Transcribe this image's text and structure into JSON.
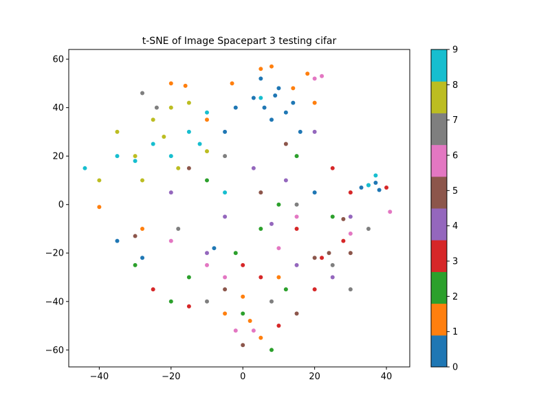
{
  "chart_data": {
    "type": "scatter",
    "title": "t-SNE of Image Spacepart 3 testing cifar",
    "xlabel": "",
    "ylabel": "",
    "xlim": [
      -48.5,
      46.5
    ],
    "ylim": [
      -67,
      64
    ],
    "x_ticks": [
      -40,
      -20,
      0,
      20,
      40
    ],
    "y_ticks": [
      -60,
      -40,
      -20,
      0,
      20,
      40,
      60
    ],
    "x_tick_labels": [
      "−40",
      "−20",
      "0",
      "20",
      "40"
    ],
    "y_tick_labels": [
      "−60",
      "−40",
      "−20",
      "0",
      "20",
      "40",
      "60"
    ],
    "grid": false,
    "colorbar": {
      "range": [
        0,
        9
      ],
      "ticks": [
        0,
        1,
        2,
        3,
        4,
        5,
        6,
        7,
        8,
        9
      ],
      "tick_labels": [
        "0",
        "1",
        "2",
        "3",
        "4",
        "5",
        "6",
        "7",
        "8",
        "9"
      ],
      "colors": [
        "#1f77b4",
        "#ff7f0e",
        "#2ca02c",
        "#d62728",
        "#9467bd",
        "#8c564b",
        "#e377c2",
        "#7f7f7f",
        "#bcbd22",
        "#17becf"
      ]
    },
    "series": [
      {
        "values": [
          [
            5,
            52
          ],
          [
            9,
            45
          ],
          [
            12,
            38
          ],
          [
            6,
            40
          ],
          [
            10,
            48
          ],
          [
            14,
            42
          ],
          [
            8,
            35
          ],
          [
            3,
            44
          ],
          [
            -2,
            40
          ],
          [
            16,
            30
          ],
          [
            35,
            8
          ],
          [
            37,
            9
          ],
          [
            33,
            7
          ],
          [
            38,
            6
          ],
          [
            -8,
            -18
          ],
          [
            -28,
            -22
          ],
          [
            -35,
            -15
          ],
          [
            20,
            5
          ],
          [
            -5,
            30
          ]
        ]
      },
      {
        "values": [
          [
            5,
            56
          ],
          [
            8,
            57
          ],
          [
            -3,
            50
          ],
          [
            -20,
            50
          ],
          [
            -16,
            49
          ],
          [
            2,
            -48
          ],
          [
            5,
            -55
          ],
          [
            -5,
            -45
          ],
          [
            0,
            -38
          ],
          [
            18,
            54
          ],
          [
            -28,
            -10
          ],
          [
            -40,
            -1
          ],
          [
            10,
            -30
          ],
          [
            -10,
            35
          ],
          [
            14,
            48
          ],
          [
            20,
            42
          ]
        ]
      },
      {
        "values": [
          [
            -2,
            -20
          ],
          [
            5,
            -10
          ],
          [
            10,
            0
          ],
          [
            -15,
            -30
          ],
          [
            15,
            20
          ],
          [
            -10,
            10
          ],
          [
            0,
            -45
          ],
          [
            25,
            -5
          ],
          [
            -20,
            -40
          ],
          [
            8,
            -60
          ],
          [
            -30,
            -25
          ],
          [
            12,
            -35
          ]
        ]
      },
      {
        "values": [
          [
            22,
            -22
          ],
          [
            28,
            -15
          ],
          [
            20,
            -35
          ],
          [
            10,
            -50
          ],
          [
            30,
            5
          ],
          [
            15,
            -10
          ],
          [
            -15,
            -42
          ],
          [
            -25,
            -35
          ],
          [
            5,
            -30
          ],
          [
            25,
            15
          ],
          [
            40,
            7
          ],
          [
            0,
            -25
          ]
        ]
      },
      {
        "values": [
          [
            8,
            -8
          ],
          [
            -5,
            -5
          ],
          [
            15,
            -25
          ],
          [
            25,
            -30
          ],
          [
            20,
            30
          ],
          [
            -10,
            -20
          ],
          [
            3,
            15
          ],
          [
            30,
            -5
          ],
          [
            -20,
            5
          ],
          [
            12,
            10
          ]
        ]
      },
      {
        "values": [
          [
            20,
            -22
          ],
          [
            24,
            -20
          ],
          [
            5,
            5
          ],
          [
            -30,
            -13
          ],
          [
            12,
            25
          ],
          [
            -5,
            -35
          ],
          [
            15,
            -45
          ],
          [
            30,
            -20
          ],
          [
            -15,
            15
          ],
          [
            0,
            -58
          ],
          [
            28,
            -6
          ]
        ]
      },
      {
        "values": [
          [
            20,
            52
          ],
          [
            22,
            53
          ],
          [
            3,
            -52
          ],
          [
            -2,
            -52
          ],
          [
            -10,
            -25
          ],
          [
            -5,
            -30
          ],
          [
            30,
            -12
          ],
          [
            10,
            -18
          ],
          [
            -20,
            -15
          ],
          [
            15,
            -5
          ],
          [
            41,
            -3
          ]
        ]
      },
      {
        "values": [
          [
            -28,
            46
          ],
          [
            -24,
            40
          ],
          [
            -10,
            -40
          ],
          [
            15,
            0
          ],
          [
            30,
            -35
          ],
          [
            -5,
            20
          ],
          [
            25,
            -25
          ],
          [
            8,
            -40
          ],
          [
            35,
            -10
          ],
          [
            -18,
            -10
          ]
        ]
      },
      {
        "values": [
          [
            -20,
            40
          ],
          [
            -25,
            35
          ],
          [
            -30,
            20
          ],
          [
            -35,
            30
          ],
          [
            -15,
            42
          ],
          [
            -22,
            28
          ],
          [
            -40,
            10
          ],
          [
            -18,
            15
          ],
          [
            -28,
            10
          ],
          [
            -10,
            22
          ]
        ]
      },
      {
        "values": [
          [
            -44,
            15
          ],
          [
            -15,
            30
          ],
          [
            -10,
            38
          ],
          [
            -30,
            18
          ],
          [
            -25,
            25
          ],
          [
            -35,
            20
          ],
          [
            -20,
            20
          ],
          [
            -12,
            25
          ],
          [
            35,
            8
          ],
          [
            37,
            12
          ],
          [
            5,
            44
          ],
          [
            -5,
            5
          ]
        ]
      }
    ]
  }
}
